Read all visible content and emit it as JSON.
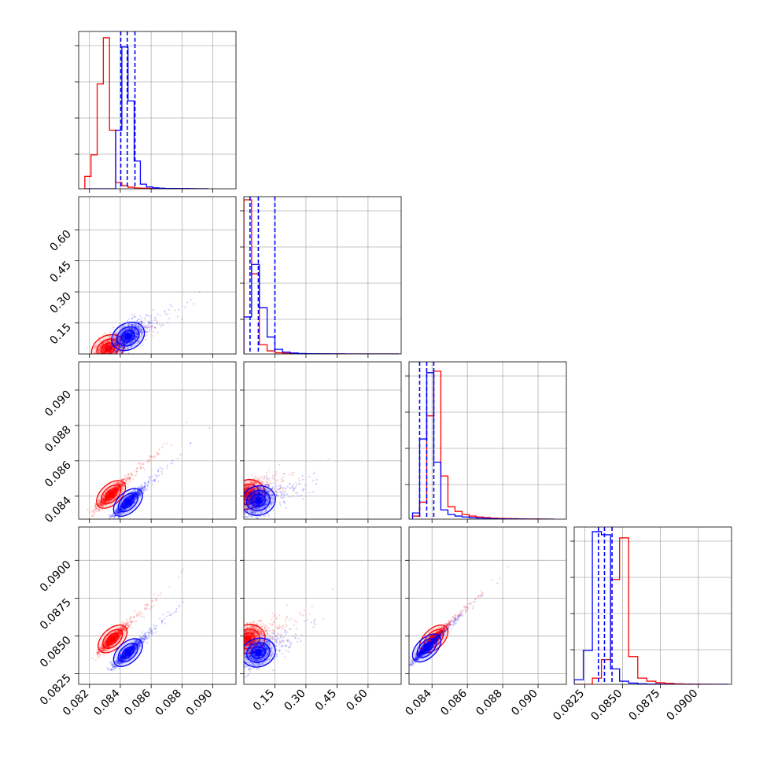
{
  "chart_data": {
    "type": "corner",
    "title": "",
    "colors": {
      "series_a": "#ff0000",
      "series_b": "#0000ff"
    },
    "series": [
      {
        "color": "#ff0000"
      },
      {
        "color": "#0000ff"
      }
    ],
    "parameters": [
      {
        "range": [
          0.0813,
          0.0915
        ],
        "ticks": [
          0.082,
          0.084,
          0.086,
          0.088,
          0.09
        ],
        "tick_labels": [
          "0.082",
          "0.084",
          "0.086",
          "0.088",
          "0.090"
        ]
      },
      {
        "range": [
          0.0,
          0.76
        ],
        "ticks": [
          0.15,
          0.3,
          0.45,
          0.6
        ],
        "tick_labels": [
          "0.15",
          "0.30",
          "0.45",
          "0.60"
        ]
      },
      {
        "range": [
          0.0827,
          0.0916
        ],
        "ticks": [
          0.084,
          0.086,
          0.088,
          0.09
        ],
        "tick_labels": [
          "0.084",
          "0.086",
          "0.088",
          "0.090"
        ]
      },
      {
        "range": [
          0.0818,
          0.0922
        ],
        "ticks": [
          0.0825,
          0.085,
          0.0875,
          0.09
        ],
        "tick_labels": [
          "0.0825",
          "0.0850",
          "0.0875",
          "0.0900"
        ]
      }
    ],
    "histograms": [
      {
        "param": 0,
        "x_ticks_shown": [
          0.082,
          0.084,
          0.086,
          0.088,
          0.09
        ],
        "quantile_lines_blue": [
          0.08403,
          0.08445,
          0.08495
        ],
        "red": {
          "bin_edges": [
            0.0817,
            0.0821,
            0.0825,
            0.0829,
            0.0833,
            0.0837,
            0.0841,
            0.0845,
            0.0849,
            0.0853,
            0.0857,
            0.0861,
            0.0865,
            0.0869,
            0.0873,
            0.0877,
            0.0881,
            0.0885,
            0.0889,
            0.0893,
            0.0897
          ],
          "counts": [
            0.08,
            0.22,
            0.68,
            0.98,
            0.38,
            0.04,
            0.02,
            0.01,
            0.005,
            0.004,
            0.003,
            0.002,
            0.002,
            0.001,
            0.001,
            0.001,
            0.0005,
            0,
            0,
            0
          ]
        },
        "blue": {
          "bin_edges": [
            0.0817,
            0.0821,
            0.0825,
            0.0829,
            0.0833,
            0.0837,
            0.0841,
            0.0845,
            0.0849,
            0.0853,
            0.0857,
            0.0861,
            0.0865,
            0.0869,
            0.0873,
            0.0877,
            0.0881,
            0.0885,
            0.0889,
            0.0893,
            0.0897
          ],
          "counts": [
            0,
            0,
            0,
            0,
            0,
            0.38,
            0.92,
            0.57,
            0.18,
            0.03,
            0.012,
            0.006,
            0.004,
            0.002,
            0.002,
            0.001,
            0.001,
            0.0005,
            0,
            0
          ]
        }
      },
      {
        "param": 1,
        "quantile_lines_blue": [
          0.03,
          0.07,
          0.15
        ],
        "red": {
          "bin_edges": [
            0.0,
            0.0375,
            0.075,
            0.1125,
            0.15,
            0.1875,
            0.225,
            0.2625,
            0.3,
            0.3375,
            0.375,
            0.4125,
            0.45,
            0.4875,
            0.525,
            0.5625,
            0.6,
            0.6375,
            0.675,
            0.7125,
            0.75
          ],
          "counts": [
            1.0,
            0.52,
            0.06,
            0.02,
            0.008,
            0.005,
            0.003,
            0.002,
            0.001,
            0.001,
            0.001,
            0.0005,
            0.0005,
            0,
            0,
            0,
            0,
            0,
            0,
            0
          ]
        },
        "blue": {
          "bin_edges": [
            0.0,
            0.0375,
            0.075,
            0.1125,
            0.15,
            0.1875,
            0.225,
            0.2625,
            0.3,
            0.3375,
            0.375,
            0.4125,
            0.45,
            0.4875,
            0.525,
            0.5625,
            0.6,
            0.6375,
            0.675,
            0.7125,
            0.75
          ],
          "counts": [
            0.24,
            0.58,
            0.3,
            0.11,
            0.03,
            0.012,
            0.006,
            0.003,
            0.002,
            0.001,
            0.001,
            0.0005,
            0.0005,
            0,
            0,
            0,
            0,
            0,
            0,
            0
          ]
        }
      },
      {
        "param": 2,
        "quantile_lines_blue": [
          0.0833,
          0.0837,
          0.0841
        ],
        "red": {
          "bin_edges": [
            0.0829,
            0.0833,
            0.0837,
            0.0841,
            0.0845,
            0.0849,
            0.0853,
            0.0857,
            0.0861,
            0.0865,
            0.0869,
            0.0873,
            0.0877,
            0.0881,
            0.0885,
            0.0889,
            0.0893,
            0.0897,
            0.0901,
            0.0905,
            0.0909
          ],
          "counts": [
            0.02,
            0.11,
            0.67,
            0.96,
            0.28,
            0.08,
            0.05,
            0.03,
            0.02,
            0.014,
            0.01,
            0.007,
            0.005,
            0.004,
            0.003,
            0.002,
            0.001,
            0.001,
            0.0005,
            0
          ]
        },
        "blue": {
          "bin_edges": [
            0.0829,
            0.0833,
            0.0837,
            0.0841,
            0.0845,
            0.0849,
            0.0853,
            0.0857,
            0.0861,
            0.0865,
            0.0869,
            0.0873,
            0.0877,
            0.0881,
            0.0885,
            0.0889,
            0.0893,
            0.0897,
            0.0901,
            0.0905,
            0.0909
          ],
          "counts": [
            0.04,
            0.52,
            0.95,
            0.37,
            0.06,
            0.03,
            0.02,
            0.014,
            0.01,
            0.007,
            0.005,
            0.003,
            0.002,
            0.001,
            0.001,
            0.0005,
            0,
            0,
            0,
            0
          ]
        }
      },
      {
        "param": 3,
        "quantile_lines_blue": [
          0.0834,
          0.0838,
          0.0843
        ],
        "red": {
          "bin_edges": [
            0.0818,
            0.0824,
            0.083,
            0.0836,
            0.0842,
            0.0848,
            0.0854,
            0.086,
            0.0866,
            0.0872,
            0.0878,
            0.0884,
            0.089,
            0.0896,
            0.0902,
            0.0908,
            0.0914,
            0.092
          ],
          "counts": [
            0,
            0,
            0.04,
            0.16,
            0.68,
            0.95,
            0.18,
            0.04,
            0.02,
            0.01,
            0.006,
            0.003,
            0.002,
            0.001,
            0.0005,
            0,
            0
          ]
        },
        "blue": {
          "bin_edges": [
            0.0818,
            0.0824,
            0.083,
            0.0836,
            0.0842,
            0.0848,
            0.0854,
            0.086,
            0.0866,
            0.0872,
            0.0878,
            0.0884,
            0.089,
            0.0896,
            0.0902,
            0.0908,
            0.0914,
            0.092
          ],
          "counts": [
            0.03,
            0.22,
            0.99,
            0.97,
            0.1,
            0.02,
            0.008,
            0.004,
            0.002,
            0.001,
            0.0005,
            0,
            0,
            0,
            0,
            0,
            0
          ]
        }
      }
    ],
    "scatter_panels": [
      {
        "x_param": 0,
        "y_param": 1,
        "red_center": [
          0.0832,
          0.025
        ],
        "blue_center": [
          0.0845,
          0.085
        ]
      },
      {
        "x_param": 0,
        "y_param": 2,
        "red_center": [
          0.0834,
          0.0841
        ],
        "blue_center": [
          0.0845,
          0.08365
        ]
      },
      {
        "x_param": 1,
        "y_param": 2,
        "red_center": [
          0.02,
          0.0841
        ],
        "blue_center": [
          0.07,
          0.08375
        ]
      },
      {
        "x_param": 0,
        "y_param": 3,
        "red_center": [
          0.0835,
          0.0848
        ],
        "blue_center": [
          0.0845,
          0.0839
        ]
      },
      {
        "x_param": 1,
        "y_param": 3,
        "red_center": [
          0.02,
          0.0848
        ],
        "blue_center": [
          0.07,
          0.0839
        ]
      },
      {
        "x_param": 2,
        "y_param": 3,
        "red_center": [
          0.0841,
          0.0848
        ],
        "blue_center": [
          0.0837,
          0.0842
        ]
      }
    ],
    "grid": true,
    "legend": "none"
  }
}
